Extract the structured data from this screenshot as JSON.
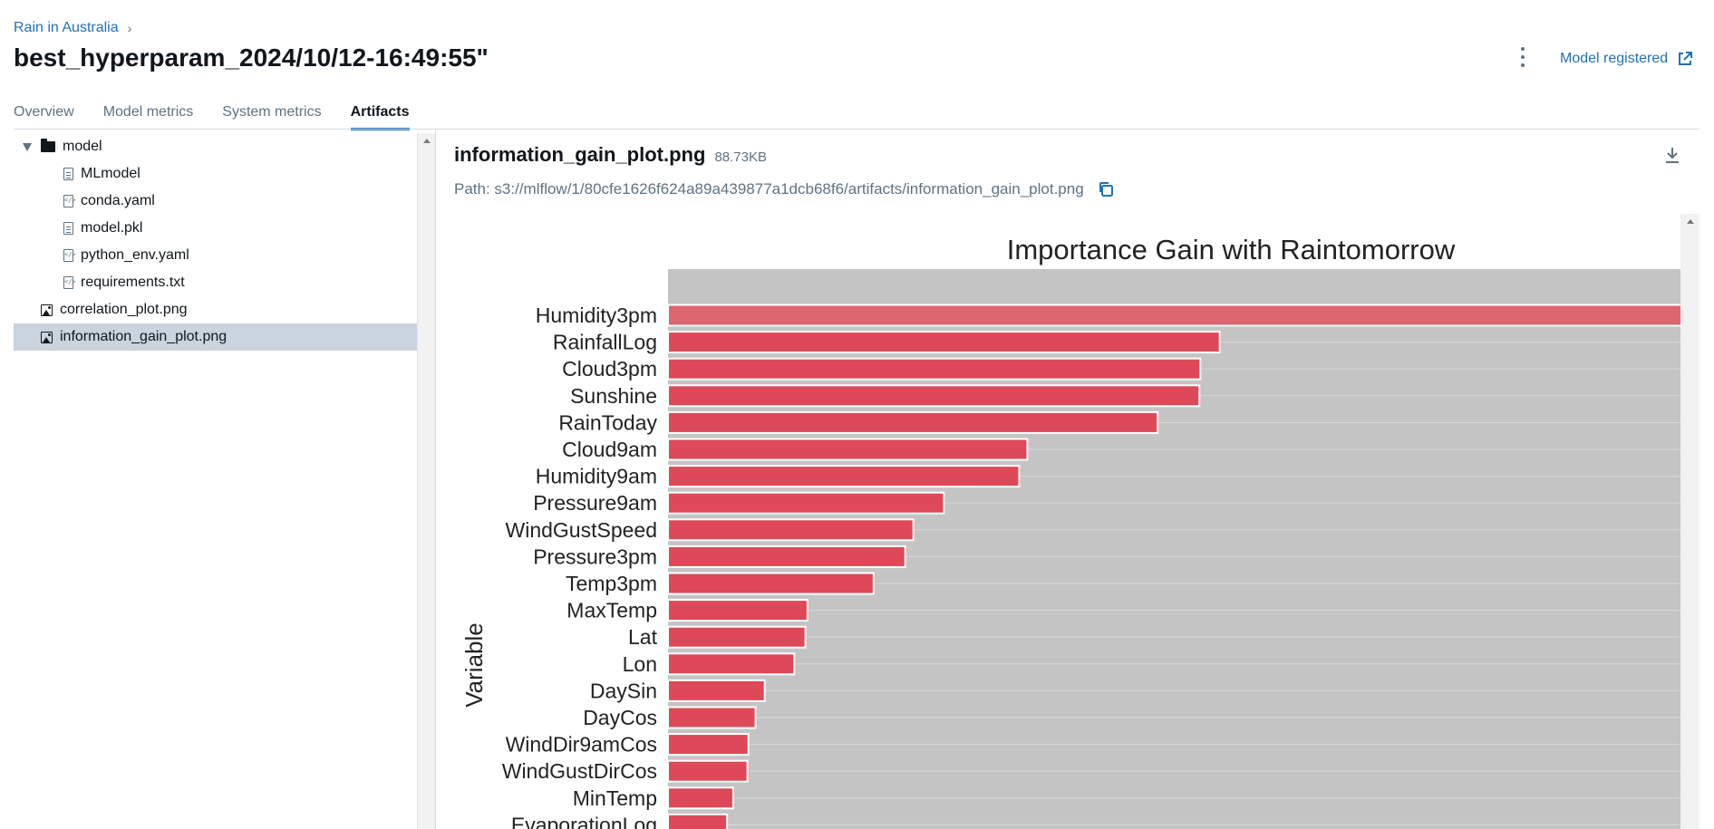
{
  "breadcrumb": {
    "experiment": "Rain in Australia"
  },
  "header": {
    "title": "best_hyperparam_2024/10/12-16:49:55\"",
    "model_registered": "Model registered"
  },
  "tabs": [
    {
      "label": "Overview",
      "active": false
    },
    {
      "label": "Model metrics",
      "active": false
    },
    {
      "label": "System metrics",
      "active": false
    },
    {
      "label": "Artifacts",
      "active": true
    }
  ],
  "tree": {
    "folder": "model",
    "children": [
      {
        "label": "MLmodel",
        "icon": "file-icon"
      },
      {
        "label": "conda.yaml",
        "icon": "code-file-icon"
      },
      {
        "label": "model.pkl",
        "icon": "file-icon"
      },
      {
        "label": "python_env.yaml",
        "icon": "code-file-icon"
      },
      {
        "label": "requirements.txt",
        "icon": "code-file-icon"
      }
    ],
    "root_files": [
      {
        "label": "correlation_plot.png",
        "icon": "image-icon"
      },
      {
        "label": "information_gain_plot.png",
        "icon": "image-icon",
        "selected": true
      }
    ]
  },
  "preview": {
    "file_name": "information_gain_plot.png",
    "file_size": "88.73KB",
    "path": "Path: s3://mlflow/1/80cfe1626f624a89a439877a1dcb68f6/artifacts/information_gain_plot.png"
  },
  "chart_data": {
    "type": "bar",
    "orientation": "horizontal",
    "title": "Importance Gain with Raintomorrow",
    "ylabel": "Variable",
    "categories": [
      "Humidity3pm",
      "RainfallLog",
      "Cloud3pm",
      "Sunshine",
      "RainToday",
      "Cloud9am",
      "Humidity9am",
      "Pressure9am",
      "WindGustSpeed",
      "Pressure3pm",
      "Temp3pm",
      "MaxTemp",
      "Lat",
      "Lon",
      "DaySin",
      "DayCos",
      "WindDir9amCos",
      "WindGustDirCos",
      "MinTemp",
      "EvaporationLog"
    ],
    "values": [
      1.0,
      0.542,
      0.523,
      0.522,
      0.481,
      0.353,
      0.345,
      0.271,
      0.241,
      0.233,
      0.202,
      0.137,
      0.135,
      0.124,
      0.095,
      0.086,
      0.079,
      0.078,
      0.064,
      0.058
    ],
    "xlim": [
      0,
      1.0
    ],
    "grid": true,
    "colors": {
      "bar": "#dd4958",
      "bar_first": "#dd6670",
      "panel": "#c4c4c4",
      "bar_edge": "#ffffff"
    }
  }
}
